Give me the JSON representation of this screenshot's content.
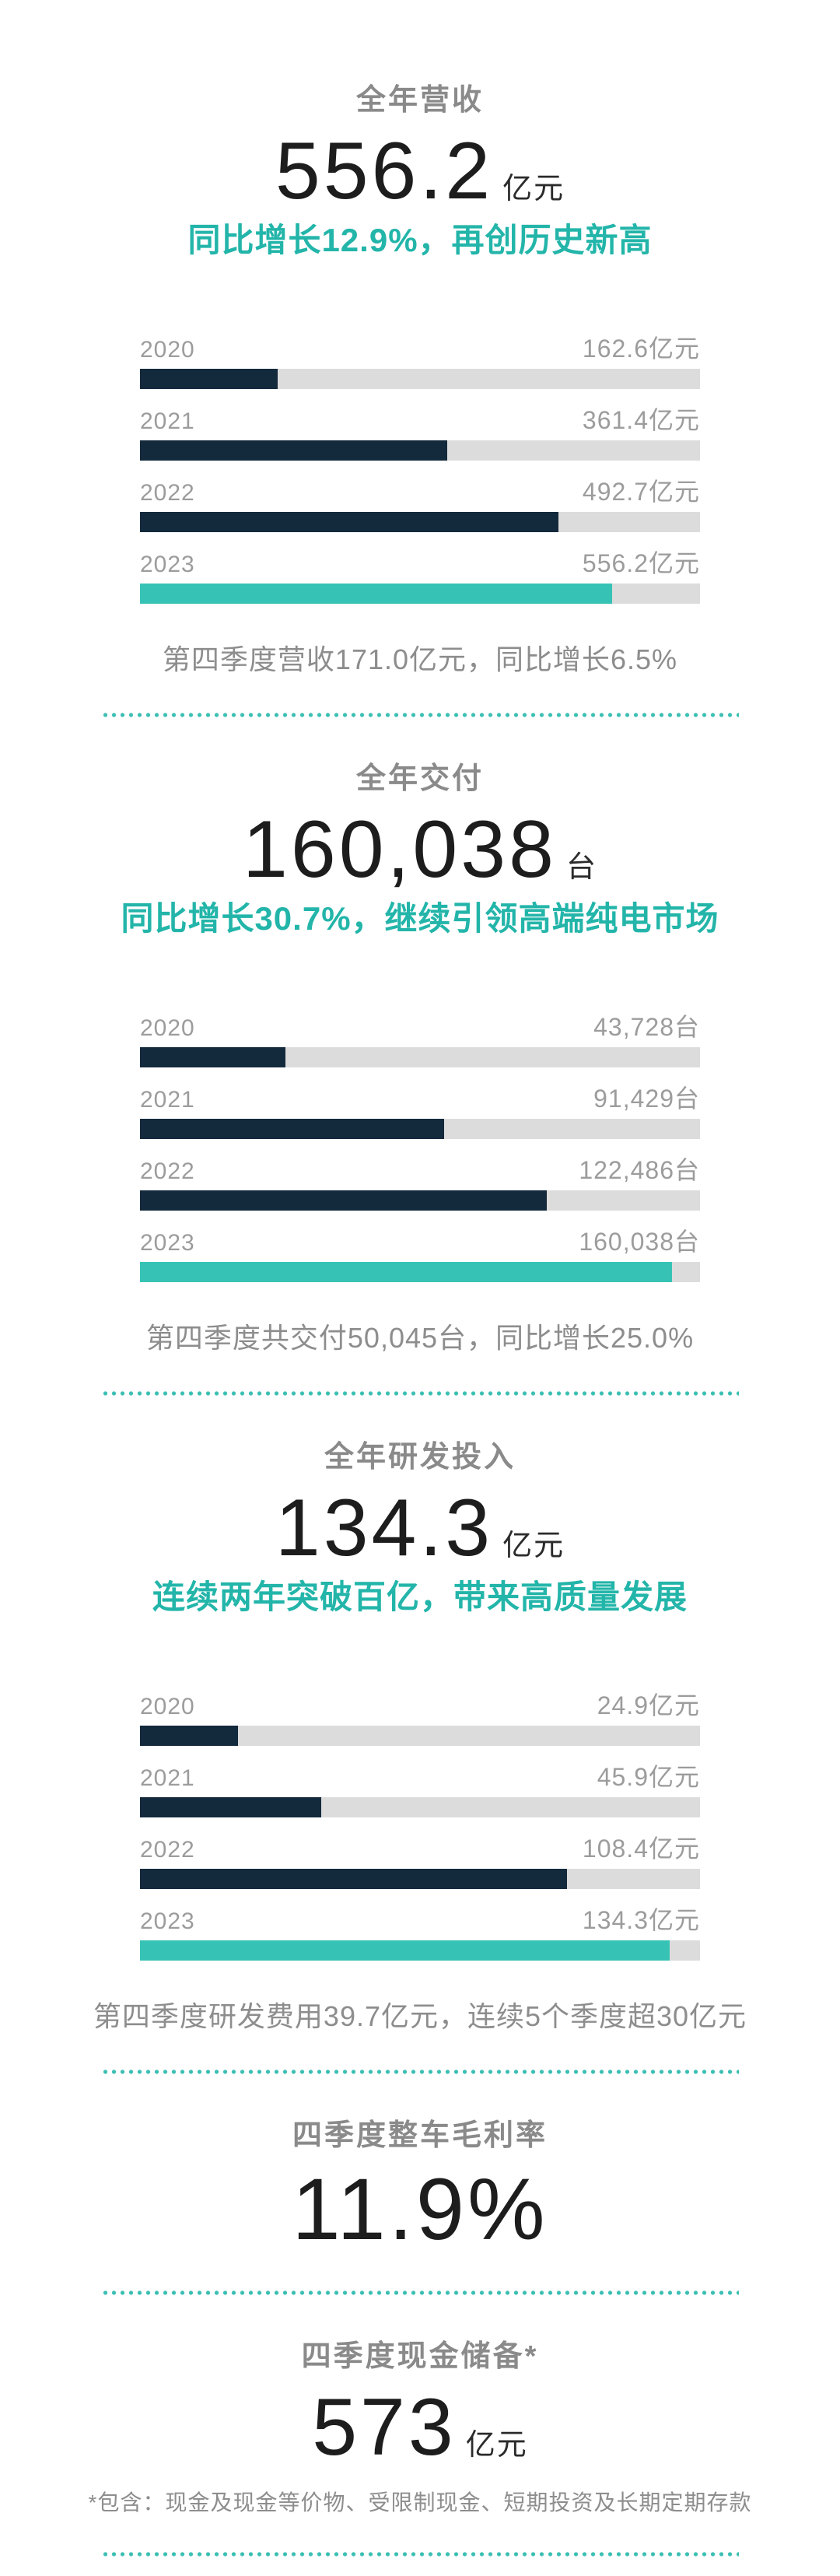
{
  "colors": {
    "navy": "#13293c",
    "teal": "#36c3b5",
    "teal_text": "#23b5a9",
    "track_gray": "#dcdcdc",
    "label_gray": "#9c9c9c",
    "title_gray": "#8a8a8a",
    "number_dark": "#1d1d1d"
  },
  "sections": {
    "revenue": {
      "title": "全年营收",
      "value": "556.2",
      "unit": "亿元",
      "subtitle": "同比增长12.9%，再创历史新高",
      "footnote": "第四季度营收171.0亿元，同比增长6.5%"
    },
    "delivery": {
      "title": "全年交付",
      "value": "160,038",
      "unit": "台",
      "subtitle": "同比增长30.7%，继续引领高端纯电市场",
      "footnote": "第四季度共交付50,045台，同比增长25.0%"
    },
    "rnd": {
      "title": "全年研发投入",
      "value": "134.3",
      "unit": "亿元",
      "subtitle": "连续两年突破百亿，带来高质量发展",
      "footnote": "第四季度研发费用39.7亿元，连续5个季度超30亿元"
    },
    "margin": {
      "title": "四季度整车毛利率",
      "value": "11.9%"
    },
    "cash": {
      "title": "四季度现金储备*",
      "value": "573",
      "unit": "亿元",
      "footnote": "*包含：现金及现金等价物、受限制现金、短期投资及长期定期存款"
    }
  },
  "chart_data": [
    {
      "type": "bar",
      "orientation": "horizontal",
      "title": "全年营收（亿元）",
      "categories": [
        "2020",
        "2021",
        "2022",
        "2023"
      ],
      "values": [
        162.6,
        361.4,
        492.7,
        556.2
      ],
      "value_labels": [
        "162.6亿元",
        "361.4亿元",
        "492.7亿元",
        "556.2亿元"
      ],
      "unit": "亿元",
      "xlim": [
        0,
        660
      ],
      "highlight_category": "2023",
      "legend": "none",
      "grid": false
    },
    {
      "type": "bar",
      "orientation": "horizontal",
      "title": "全年交付（台）",
      "categories": [
        "2020",
        "2021",
        "2022",
        "2023"
      ],
      "values": [
        43728,
        91429,
        122486,
        160038
      ],
      "value_labels": [
        "43,728台",
        "91,429台",
        "122,486台",
        "160,038台"
      ],
      "unit": "台",
      "xlim": [
        0,
        168500
      ],
      "highlight_category": "2023",
      "legend": "none",
      "grid": false
    },
    {
      "type": "bar",
      "orientation": "horizontal",
      "title": "全年研发投入（亿元）",
      "categories": [
        "2020",
        "2021",
        "2022",
        "2023"
      ],
      "values": [
        24.9,
        45.9,
        108.4,
        134.3
      ],
      "value_labels": [
        "24.9亿元",
        "45.9亿元",
        "108.4亿元",
        "134.3亿元"
      ],
      "unit": "亿元",
      "xlim": [
        0,
        142
      ],
      "highlight_category": "2023",
      "legend": "none",
      "grid": false
    }
  ]
}
